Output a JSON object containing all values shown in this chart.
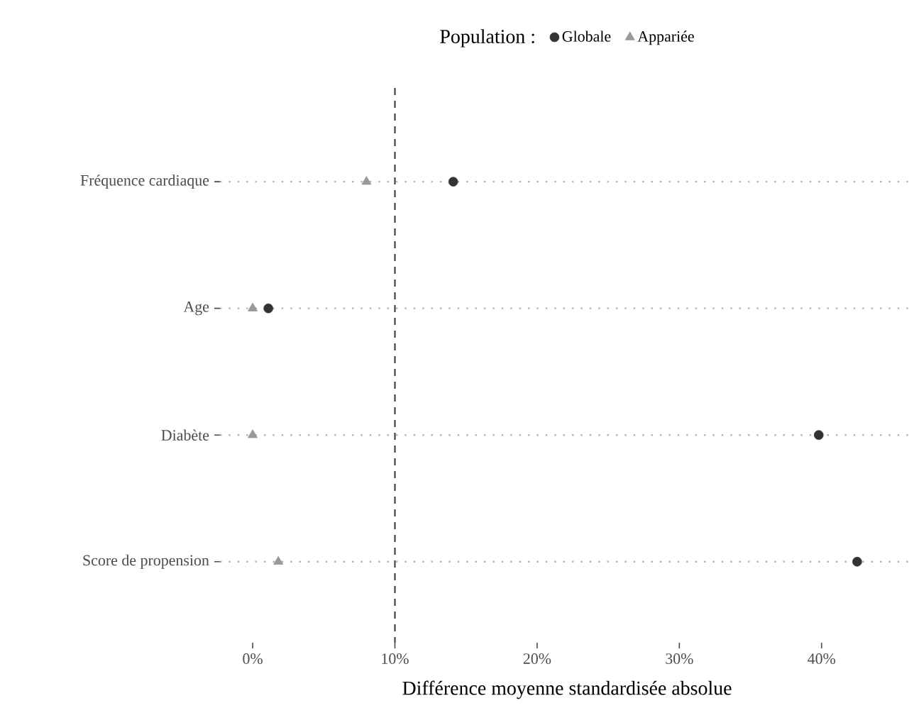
{
  "chart_data": {
    "type": "scatter",
    "orientation": "horizontal",
    "xlabel": "Différence moyenne standardisée absolue",
    "legend_title": "Population :",
    "categories": [
      "Fréquence cardiaque",
      "Age",
      "Diabète",
      "Score de propension"
    ],
    "series": [
      {
        "name": "Globale",
        "color": "#333333",
        "marker": "circle",
        "values": [
          14.1,
          1.1,
          39.8,
          42.5
        ]
      },
      {
        "name": "Appariée",
        "color": "#999999",
        "marker": "triangle",
        "values": [
          8.0,
          0.0,
          0.0,
          1.8
        ]
      }
    ],
    "xlim": [
      -2.3,
      46.5
    ],
    "xticks": [
      {
        "value": 0,
        "label": "0%"
      },
      {
        "value": 10,
        "label": "10%"
      },
      {
        "value": 20,
        "label": "20%"
      },
      {
        "value": 30,
        "label": "30%"
      },
      {
        "value": 40,
        "label": "40%"
      }
    ],
    "ref_lines": [
      {
        "axis": "x",
        "value": 10,
        "color": "#333333",
        "line_style": "dashed"
      }
    ],
    "grid": "y",
    "legend": "top"
  }
}
